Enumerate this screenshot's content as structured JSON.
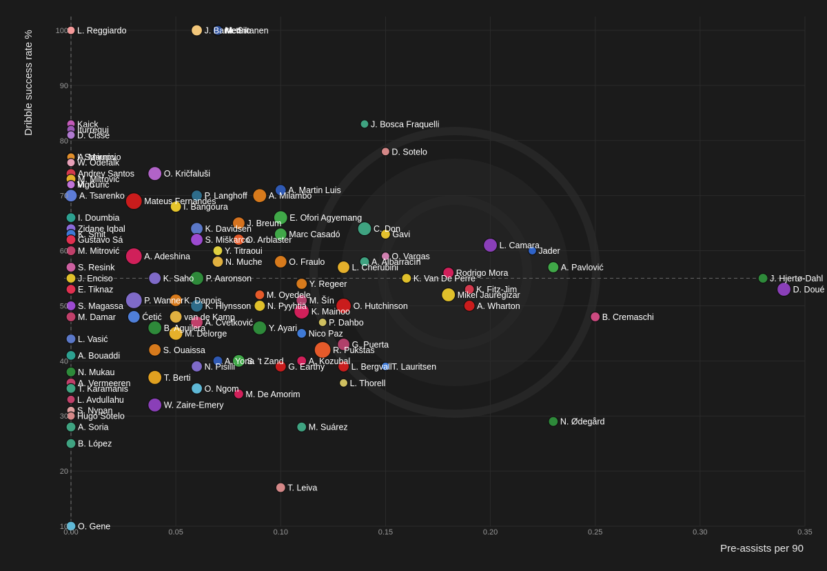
{
  "chart_data": {
    "type": "scatter",
    "title": "",
    "xlabel": "Pre-assists per 90",
    "ylabel": "Dribble success rate %",
    "xlim": [
      0,
      0.35
    ],
    "ylim": [
      10,
      100
    ],
    "x_ticks": [
      "0.00",
      "0.05",
      "0.10",
      "0.15",
      "0.20",
      "0.25",
      "0.30",
      "0.35"
    ],
    "y_ticks": [
      "10",
      "20",
      "30",
      "40",
      "50",
      "60",
      "70",
      "80",
      "90",
      "100"
    ],
    "grid": true,
    "reference_lines": {
      "x": 0,
      "y": 55
    },
    "watermark": "circular crest",
    "points": [
      {
        "label": "L. Reggiardo",
        "x": 0.0,
        "y": 100,
        "color": "#f59a9a",
        "size": 6
      },
      {
        "label": "J. Bartlett",
        "x": 0.06,
        "y": 100,
        "color": "#f1c67a",
        "size": 8
      },
      {
        "label": "M. Siltanen",
        "x": 0.07,
        "y": 100,
        "color": "#3b5fb8",
        "size": 8
      },
      {
        "label": "Merino",
        "x": 0.07,
        "y": 100,
        "color": "#2a4e9c",
        "size": 7
      },
      {
        "label": "Kaick",
        "x": 0.0,
        "y": 83,
        "color": "#c35ab8",
        "size": 6
      },
      {
        "label": "Iturregui",
        "x": 0.0,
        "y": 82,
        "color": "#9b59b6",
        "size": 6
      },
      {
        "label": "D. Cissé",
        "x": 0.0,
        "y": 81,
        "color": "#b07ad0",
        "size": 6
      },
      {
        "label": "J. Bosca Fraquelli",
        "x": 0.14,
        "y": 83,
        "color": "#3fa381",
        "size": 6
      },
      {
        "label": "D. Sotelo",
        "x": 0.15,
        "y": 78,
        "color": "#d58888",
        "size": 6
      },
      {
        "label": "A. Mauricio",
        "x": 0.0,
        "y": 77,
        "color": "#4f7fd9",
        "size": 7
      },
      {
        "label": "I. Smirnov",
        "x": 0.0,
        "y": 77,
        "color": "#e08e2b",
        "size": 6
      },
      {
        "label": "W. Odefalk",
        "x": 0.0,
        "y": 76,
        "color": "#e6a0b8",
        "size": 6
      },
      {
        "label": "Andrey Santos",
        "x": 0.0,
        "y": 74,
        "color": "#d43a4e",
        "size": 7
      },
      {
        "label": "O. Kričfaluši",
        "x": 0.04,
        "y": 74,
        "color": "#b163c8",
        "size": 10
      },
      {
        "label": "M. Mitrović",
        "x": 0.0,
        "y": 73,
        "color": "#e5b02b",
        "size": 7
      },
      {
        "label": "Vigo",
        "x": 0.0,
        "y": 72,
        "color": "#4b5fd0",
        "size": 6
      },
      {
        "label": "M. Ćurić",
        "x": 0.0,
        "y": 72,
        "color": "#c073d6",
        "size": 6
      },
      {
        "label": "A. Martin Luis",
        "x": 0.1,
        "y": 71,
        "color": "#2f59b3",
        "size": 8
      },
      {
        "label": "A. Tsarenko",
        "x": 0.0,
        "y": 70,
        "color": "#5d7cd6",
        "size": 9
      },
      {
        "label": "P. Langhoff",
        "x": 0.06,
        "y": 70,
        "color": "#2e6c8a",
        "size": 8
      },
      {
        "label": "A. Milambo",
        "x": 0.09,
        "y": 70,
        "color": "#d77a1c",
        "size": 10
      },
      {
        "label": "Mateus Fernandes",
        "x": 0.03,
        "y": 69,
        "color": "#c91c1c",
        "size": 12
      },
      {
        "label": "I. Bangoura",
        "x": 0.05,
        "y": 68,
        "color": "#e6c52b",
        "size": 8
      },
      {
        "label": "E. Ofori Agyemang",
        "x": 0.1,
        "y": 66,
        "color": "#40a848",
        "size": 10
      },
      {
        "label": "C. Don",
        "x": 0.14,
        "y": 64,
        "color": "#3fa381",
        "size": 10
      },
      {
        "label": "I. Doumbia",
        "x": 0.0,
        "y": 66,
        "color": "#2da090",
        "size": 7
      },
      {
        "label": "Zidane Iqbal",
        "x": 0.0,
        "y": 64,
        "color": "#8a6ad8",
        "size": 7
      },
      {
        "label": "K. Davidsen",
        "x": 0.06,
        "y": 64,
        "color": "#5b78c8",
        "size": 9
      },
      {
        "label": "J. Breum",
        "x": 0.08,
        "y": 65,
        "color": "#d6731f",
        "size": 9
      },
      {
        "label": "Gavi",
        "x": 0.15,
        "y": 63,
        "color": "#e5c12d",
        "size": 7
      },
      {
        "label": "K. Smit",
        "x": 0.0,
        "y": 63,
        "color": "#3f7ad6",
        "size": 7
      },
      {
        "label": "Gustavo Sá",
        "x": 0.0,
        "y": 62,
        "color": "#e03050",
        "size": 7
      },
      {
        "label": "S. Miškarco",
        "x": 0.06,
        "y": 62,
        "color": "#9c4ad0",
        "size": 9
      },
      {
        "label": "Marc Casadó",
        "x": 0.1,
        "y": 63,
        "color": "#40a848",
        "size": 9
      },
      {
        "label": "O. Arblaster",
        "x": 0.08,
        "y": 62,
        "color": "#e55a2a",
        "size": 8
      },
      {
        "label": "L. Camara",
        "x": 0.2,
        "y": 61,
        "color": "#8a3fb8",
        "size": 10
      },
      {
        "label": "Y. Titraoui",
        "x": 0.07,
        "y": 60,
        "color": "#e0d040",
        "size": 7
      },
      {
        "label": "M. Mitrović",
        "x": 0.0,
        "y": 60,
        "color": "#c0406a",
        "size": 7
      },
      {
        "label": "A. Adeshina",
        "x": 0.03,
        "y": 59,
        "color": "#d0205a",
        "size": 12
      },
      {
        "label": "O. Vargas",
        "x": 0.15,
        "y": 59,
        "color": "#d080b0",
        "size": 6
      },
      {
        "label": "Jader",
        "x": 0.22,
        "y": 60,
        "color": "#2f63c8",
        "size": 6
      },
      {
        "label": "N. Muche",
        "x": 0.07,
        "y": 58,
        "color": "#e0b040",
        "size": 8
      },
      {
        "label": "O. Fraulo",
        "x": 0.1,
        "y": 58,
        "color": "#d77a1c",
        "size": 9
      },
      {
        "label": "A. Albarracín",
        "x": 0.14,
        "y": 58,
        "color": "#3fa381",
        "size": 7
      },
      {
        "label": "L. Cherubini",
        "x": 0.13,
        "y": 57,
        "color": "#e5b02b",
        "size": 9
      },
      {
        "label": "A. Pavlović",
        "x": 0.23,
        "y": 57,
        "color": "#40a848",
        "size": 8
      },
      {
        "label": "S. Resink",
        "x": 0.0,
        "y": 57,
        "color": "#cc60a0",
        "size": 7
      },
      {
        "label": "Rodrigo Mora",
        "x": 0.18,
        "y": 56,
        "color": "#d0205a",
        "size": 8
      },
      {
        "label": "J. Enciso",
        "x": 0.0,
        "y": 55,
        "color": "#e0c02b",
        "size": 7
      },
      {
        "label": "K. Saho",
        "x": 0.04,
        "y": 55,
        "color": "#7f6ac8",
        "size": 9
      },
      {
        "label": "P. Aaronson",
        "x": 0.06,
        "y": 55,
        "color": "#2e8a3a",
        "size": 10
      },
      {
        "label": "J. Hjertø-Dahl",
        "x": 0.33,
        "y": 55,
        "color": "#2e8a3a",
        "size": 7
      },
      {
        "label": "K. Van De Perre",
        "x": 0.16,
        "y": 55,
        "color": "#e0c02b",
        "size": 7
      },
      {
        "label": "E. Tiknaz",
        "x": 0.0,
        "y": 53,
        "color": "#e03050",
        "size": 7
      },
      {
        "label": "Y. Regeer",
        "x": 0.11,
        "y": 54,
        "color": "#d77a1c",
        "size": 8
      },
      {
        "label": "M. Oyedele",
        "x": 0.09,
        "y": 52,
        "color": "#e55a2a",
        "size": 7
      },
      {
        "label": "D. Doué",
        "x": 0.34,
        "y": 53,
        "color": "#8a3fb8",
        "size": 10
      },
      {
        "label": "Mikel Jauregizar",
        "x": 0.18,
        "y": 52,
        "color": "#e0c02b",
        "size": 10
      },
      {
        "label": "K. Fitz-Jim",
        "x": 0.19,
        "y": 53,
        "color": "#d43a4e",
        "size": 7
      },
      {
        "label": "P. Wanner",
        "x": 0.03,
        "y": 51,
        "color": "#7f6ac8",
        "size": 12
      },
      {
        "label": "K. Danois",
        "x": 0.05,
        "y": 51,
        "color": "#d77a1c",
        "size": 9
      },
      {
        "label": "M. Šín",
        "x": 0.11,
        "y": 51,
        "color": "#b0406a",
        "size": 8
      },
      {
        "label": "O. Hutchinson",
        "x": 0.13,
        "y": 50,
        "color": "#c91c1c",
        "size": 11
      },
      {
        "label": "A. Wharton",
        "x": 0.19,
        "y": 50,
        "color": "#c91c1c",
        "size": 8
      },
      {
        "label": "S. Magassa",
        "x": 0.0,
        "y": 50,
        "color": "#9c4ad0",
        "size": 7
      },
      {
        "label": "K. Hlynsson",
        "x": 0.06,
        "y": 50,
        "color": "#2e6c8a",
        "size": 9
      },
      {
        "label": "N. Pyyhtiä",
        "x": 0.09,
        "y": 50,
        "color": "#e0c02b",
        "size": 8
      },
      {
        "label": "K. Mainoo",
        "x": 0.11,
        "y": 49,
        "color": "#d0205a",
        "size": 11
      },
      {
        "label": "B. Cremaschi",
        "x": 0.25,
        "y": 48,
        "color": "#cc4a80",
        "size": 7
      },
      {
        "label": "M. Damar",
        "x": 0.0,
        "y": 48,
        "color": "#c0406a",
        "size": 7
      },
      {
        "label": "Ćetić",
        "x": 0.03,
        "y": 48,
        "color": "#4f7fd9",
        "size": 9
      },
      {
        "label": "van de Kamp",
        "x": 0.05,
        "y": 48,
        "color": "#e0b040",
        "size": 9
      },
      {
        "label": "P. Dahbo",
        "x": 0.12,
        "y": 47,
        "color": "#d0c060",
        "size": 6
      },
      {
        "label": "A. Cvetković",
        "x": 0.06,
        "y": 47,
        "color": "#c0406a",
        "size": 9
      },
      {
        "label": "B. Aguilera",
        "x": 0.04,
        "y": 46,
        "color": "#2e8a3a",
        "size": 10
      },
      {
        "label": "M. Delorge",
        "x": 0.05,
        "y": 45,
        "color": "#e5b02b",
        "size": 10
      },
      {
        "label": "Y. Ayari",
        "x": 0.09,
        "y": 46,
        "color": "#2e8a3a",
        "size": 10
      },
      {
        "label": "Nico Paz",
        "x": 0.11,
        "y": 45,
        "color": "#3f7ad6",
        "size": 7
      },
      {
        "label": "L. Vasić",
        "x": 0.0,
        "y": 44,
        "color": "#5b78c8",
        "size": 7
      },
      {
        "label": "R. Pukštas",
        "x": 0.12,
        "y": 42,
        "color": "#e55a2a",
        "size": 12
      },
      {
        "label": "G. Puerta",
        "x": 0.13,
        "y": 43,
        "color": "#b0406a",
        "size": 9
      },
      {
        "label": "S. Ouaissa",
        "x": 0.04,
        "y": 42,
        "color": "#d77a1c",
        "size": 9
      },
      {
        "label": "A. Yona",
        "x": 0.07,
        "y": 40,
        "color": "#2f59b3",
        "size": 7
      },
      {
        "label": "A. Bouaddi",
        "x": 0.0,
        "y": 41,
        "color": "#2da090",
        "size": 7
      },
      {
        "label": "N. Pisilli",
        "x": 0.06,
        "y": 39,
        "color": "#7f6ac8",
        "size": 8
      },
      {
        "label": "S. 't Zand",
        "x": 0.08,
        "y": 40,
        "color": "#40a848",
        "size": 9
      },
      {
        "label": "A. Kozubal",
        "x": 0.11,
        "y": 40,
        "color": "#d0205a",
        "size": 7
      },
      {
        "label": "G. Earthy",
        "x": 0.1,
        "y": 39,
        "color": "#c91c1c",
        "size": 8
      },
      {
        "label": "L. Bergvall",
        "x": 0.13,
        "y": 39,
        "color": "#c91c1c",
        "size": 8
      },
      {
        "label": "T. Lauritsen",
        "x": 0.15,
        "y": 39,
        "color": "#3f7ad6",
        "size": 6
      },
      {
        "label": "N. Mukau",
        "x": 0.0,
        "y": 38,
        "color": "#2e8a3a",
        "size": 7
      },
      {
        "label": "T. Berti",
        "x": 0.04,
        "y": 37,
        "color": "#e0a020",
        "size": 10
      },
      {
        "label": "A. Vermeeren",
        "x": 0.0,
        "y": 36,
        "color": "#c0406a",
        "size": 7
      },
      {
        "label": "L. Thorell",
        "x": 0.13,
        "y": 36,
        "color": "#d0c060",
        "size": 6
      },
      {
        "label": "O. Ngom",
        "x": 0.06,
        "y": 35,
        "color": "#5fb8d6",
        "size": 8
      },
      {
        "label": "T. Karamanis",
        "x": 0.0,
        "y": 35,
        "color": "#3fa381",
        "size": 7
      },
      {
        "label": "L. Avdullahu",
        "x": 0.0,
        "y": 33,
        "color": "#c0406a",
        "size": 6
      },
      {
        "label": "M. De Amorim",
        "x": 0.08,
        "y": 34,
        "color": "#d0205a",
        "size": 7
      },
      {
        "label": "W. Zaire-Emery",
        "x": 0.04,
        "y": 32,
        "color": "#8a3fb8",
        "size": 10
      },
      {
        "label": "S. Nypan",
        "x": 0.0,
        "y": 31,
        "color": "#e0a0a0",
        "size": 6
      },
      {
        "label": "Hugo Sotelo",
        "x": 0.0,
        "y": 30,
        "color": "#d58888",
        "size": 6
      },
      {
        "label": "N. Ødegård",
        "x": 0.23,
        "y": 29,
        "color": "#2e8a3a",
        "size": 7
      },
      {
        "label": "A. Soria",
        "x": 0.0,
        "y": 28,
        "color": "#3fa381",
        "size": 7
      },
      {
        "label": "M. Suárez",
        "x": 0.11,
        "y": 28,
        "color": "#3fa381",
        "size": 7
      },
      {
        "label": "B. López",
        "x": 0.0,
        "y": 25,
        "color": "#3fa381",
        "size": 7
      },
      {
        "label": "T. Leiva",
        "x": 0.1,
        "y": 17,
        "color": "#d58888",
        "size": 7
      },
      {
        "label": "O. Gene",
        "x": 0.0,
        "y": 10,
        "color": "#5fb8d6",
        "size": 7
      }
    ]
  }
}
